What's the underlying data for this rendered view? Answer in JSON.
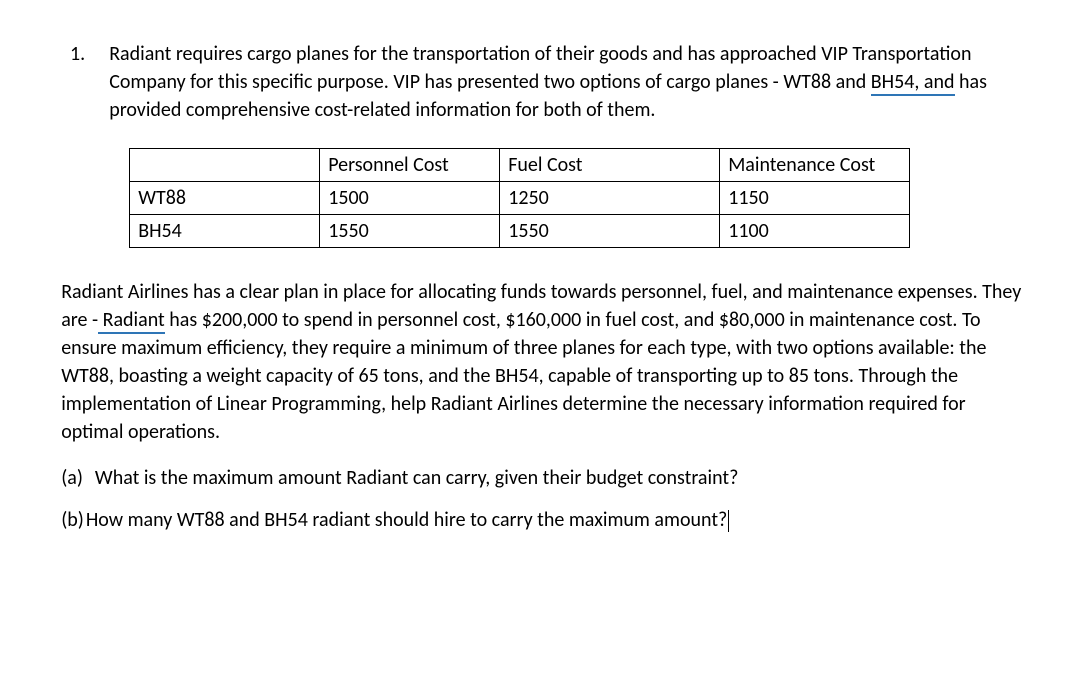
{
  "question": {
    "number": "1.",
    "intro_pre": "Radiant requires cargo planes for the transportation of their goods and has approached VIP Transportation Company for this specific purpose. VIP has presented two options of cargo planes - WT88 and ",
    "intro_squiggle": "BH54, and",
    "intro_post": " has provided comprehensive cost-related information for both of them."
  },
  "table": {
    "headers": {
      "blank": "",
      "personnel": "Personnel Cost",
      "fuel": "Fuel Cost",
      "maintenance": "Maintenance Cost"
    },
    "rows": [
      {
        "label": "WT88",
        "personnel": "1500",
        "fuel": "1250",
        "maintenance": "1150"
      },
      {
        "label": "BH54",
        "personnel": "1550",
        "fuel": "1550",
        "maintenance": "1100"
      }
    ]
  },
  "para2": {
    "pre": "Radiant Airlines has a clear plan in place for allocating funds towards personnel, fuel, and maintenance expenses. They are ",
    "dash": "-",
    "squiggle": " Radiant",
    "post": " has $200,000 to spend in personnel cost, $160,000 in fuel cost, and $80,000 in  maintenance cost. To ensure maximum efficiency, they require a minimum of three planes for each type, with two options available: the WT88, boasting a weight capacity of 65 tons, and the BH54, capable of transporting up to 85 tons. Through the implementation of Linear Programming, help Radiant Airlines determine the necessary information required for optimal operations."
  },
  "sub_a": {
    "label": "(a)",
    "text": "What is the maximum amount Radiant can carry, given their budget constraint?"
  },
  "sub_b": {
    "label": "(b)",
    "text": "How many WT88 and BH54 radiant should hire to carry the maximum amount?"
  }
}
